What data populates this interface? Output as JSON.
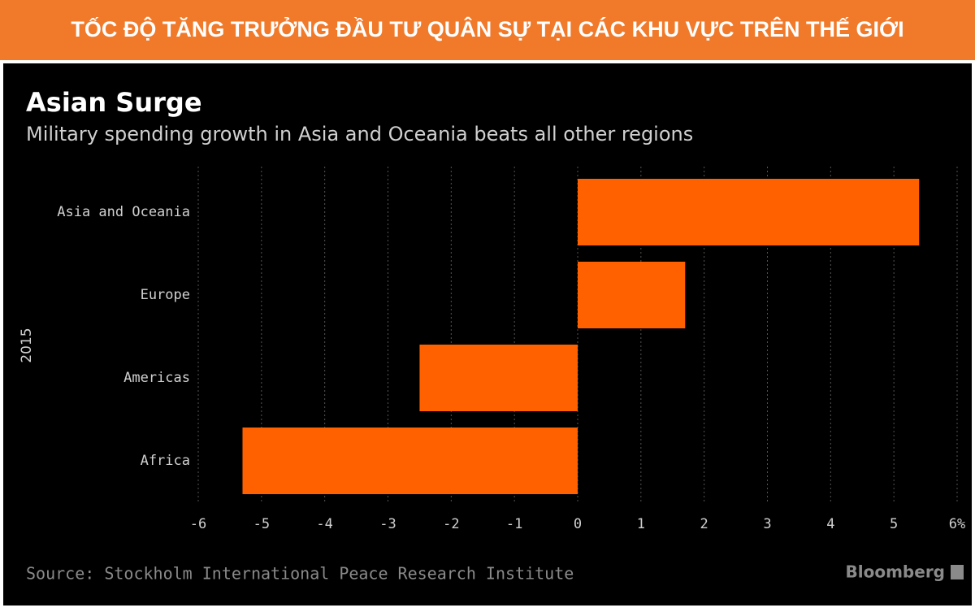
{
  "chart_data": {
    "type": "hbar",
    "banner": "TỐC ĐỘ TĂNG TRƯỞNG ĐẦU TƯ QUÂN SỰ TẠI CÁC KHU VỰC TRÊN THẾ GIỚI",
    "title": "Asian Surge",
    "subtitle": "Military spending growth in Asia and Oceania beats all other regions",
    "ylabel": "2015",
    "categories": [
      "Asia and Oceania",
      "Europe",
      "Americas",
      "Africa"
    ],
    "values": [
      5.4,
      1.7,
      -2.5,
      -5.3
    ],
    "color": "#ff6000",
    "xlim": [
      -6,
      6
    ],
    "xticks": [
      -6,
      -5,
      -4,
      -3,
      -2,
      -1,
      0,
      1,
      2,
      3,
      4,
      5,
      {
        "value": 6,
        "label": "6%"
      }
    ],
    "grid": true,
    "source": "Source: Stockholm International Peace Research Institute",
    "brand": "Bloomberg"
  }
}
